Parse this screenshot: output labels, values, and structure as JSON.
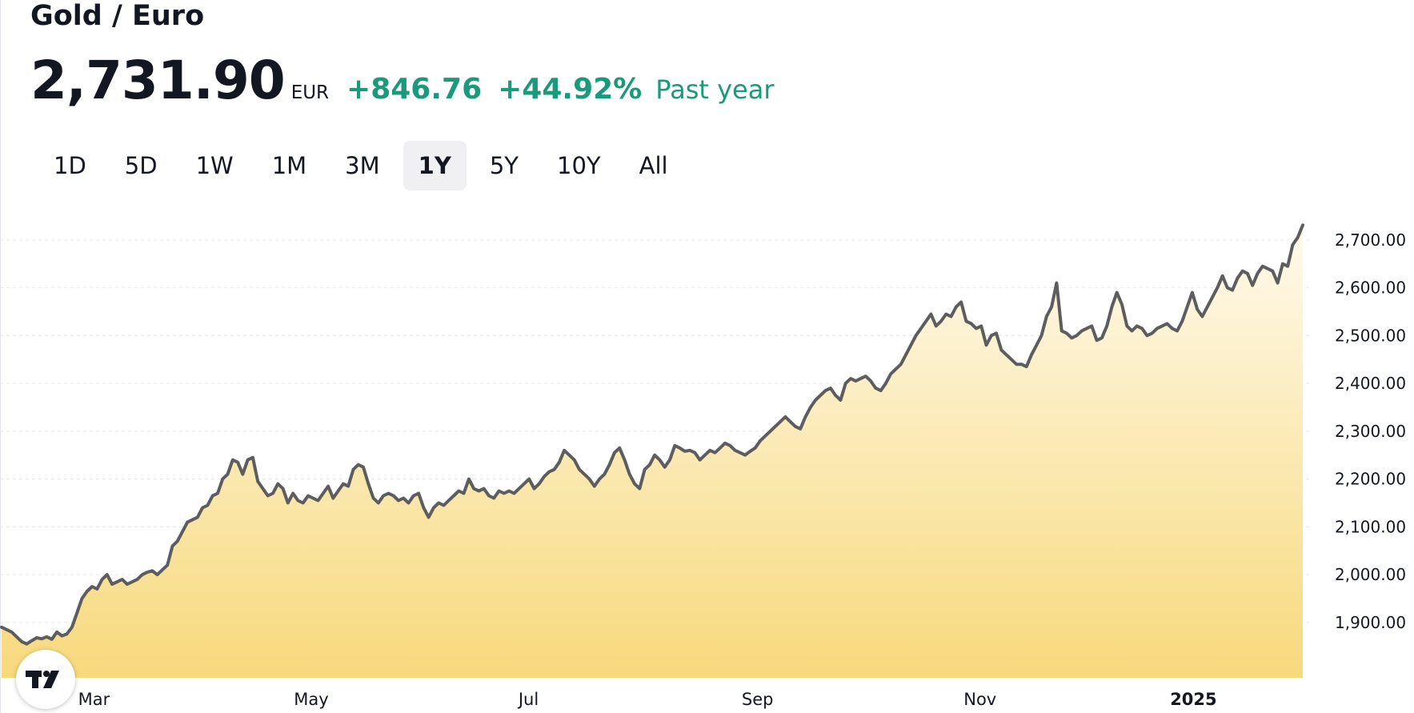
{
  "header": {
    "title": "Gold / Euro",
    "price": "2,731.90",
    "currency": "EUR",
    "change": "+846.76",
    "change_pct": "+44.92%",
    "period_label": "Past year",
    "positive_color": "#1a9a7a"
  },
  "range_tabs": [
    {
      "label": "1D",
      "active": false
    },
    {
      "label": "5D",
      "active": false
    },
    {
      "label": "1W",
      "active": false
    },
    {
      "label": "1M",
      "active": false
    },
    {
      "label": "3M",
      "active": false
    },
    {
      "label": "1Y",
      "active": true
    },
    {
      "label": "5Y",
      "active": false
    },
    {
      "label": "10Y",
      "active": false
    },
    {
      "label": "All",
      "active": false
    }
  ],
  "logo": {
    "icon": "tradingview-logo-icon",
    "text": "TV"
  },
  "chart_data": {
    "type": "area",
    "title": "",
    "xlabel": "",
    "ylabel": "",
    "grid": "horizontal dashed",
    "ylim": [
      1810,
      2760
    ],
    "y_ticks": [
      1900,
      2000,
      2100,
      2200,
      2300,
      2400,
      2500,
      2600,
      2700
    ],
    "y_tick_labels": [
      "1,900.00",
      "2,000.00",
      "2,100.00",
      "2,200.00",
      "2,300.00",
      "2,400.00",
      "2,500.00",
      "2,600.00",
      "2,700.00"
    ],
    "x_ticks": [
      {
        "label": "Mar",
        "t": 0.071,
        "bold": false
      },
      {
        "label": "May",
        "t": 0.238,
        "bold": false
      },
      {
        "label": "Jul",
        "t": 0.405,
        "bold": false
      },
      {
        "label": "Sep",
        "t": 0.581,
        "bold": false
      },
      {
        "label": "Nov",
        "t": 0.752,
        "bold": false
      },
      {
        "label": "2025",
        "t": 0.916,
        "bold": true
      }
    ],
    "line_color": "#5d5d5d",
    "fill_top_color": "#fffaec",
    "fill_bottom_color": "#f7d97c",
    "series": [
      {
        "values": [
          1890,
          1885,
          1880,
          1870,
          1860,
          1855,
          1862,
          1868,
          1866,
          1870,
          1865,
          1880,
          1872,
          1876,
          1890,
          1920,
          1950,
          1965,
          1975,
          1970,
          1990,
          2000,
          1980,
          1985,
          1990,
          1980,
          1985,
          1990,
          2000,
          2005,
          2008,
          2000,
          2010,
          2020,
          2060,
          2070,
          2090,
          2110,
          2115,
          2120,
          2140,
          2145,
          2165,
          2170,
          2200,
          2210,
          2240,
          2235,
          2210,
          2240,
          2245,
          2195,
          2180,
          2165,
          2170,
          2190,
          2180,
          2150,
          2170,
          2155,
          2150,
          2165,
          2160,
          2155,
          2170,
          2185,
          2160,
          2175,
          2190,
          2185,
          2220,
          2230,
          2225,
          2190,
          2160,
          2150,
          2165,
          2170,
          2165,
          2155,
          2160,
          2150,
          2165,
          2170,
          2140,
          2120,
          2140,
          2150,
          2145,
          2155,
          2165,
          2175,
          2170,
          2200,
          2180,
          2175,
          2180,
          2165,
          2160,
          2175,
          2170,
          2175,
          2170,
          2180,
          2190,
          2200,
          2180,
          2190,
          2205,
          2215,
          2220,
          2235,
          2260,
          2250,
          2240,
          2220,
          2210,
          2200,
          2185,
          2200,
          2210,
          2230,
          2255,
          2265,
          2240,
          2210,
          2190,
          2180,
          2220,
          2230,
          2250,
          2240,
          2225,
          2240,
          2270,
          2265,
          2258,
          2260,
          2255,
          2240,
          2250,
          2260,
          2255,
          2265,
          2275,
          2270,
          2260,
          2255,
          2250,
          2258,
          2265,
          2280,
          2290,
          2300,
          2310,
          2320,
          2330,
          2320,
          2310,
          2305,
          2330,
          2350,
          2365,
          2375,
          2385,
          2390,
          2375,
          2365,
          2400,
          2410,
          2405,
          2410,
          2415,
          2405,
          2390,
          2385,
          2400,
          2420,
          2430,
          2440,
          2460,
          2480,
          2500,
          2515,
          2530,
          2545,
          2520,
          2530,
          2545,
          2540,
          2560,
          2570,
          2530,
          2525,
          2515,
          2520,
          2480,
          2500,
          2505,
          2470,
          2460,
          2450,
          2440,
          2440,
          2435,
          2460,
          2480,
          2500,
          2540,
          2560,
          2610,
          2510,
          2505,
          2495,
          2500,
          2510,
          2515,
          2520,
          2490,
          2495,
          2520,
          2560,
          2590,
          2565,
          2520,
          2510,
          2520,
          2515,
          2500,
          2505,
          2515,
          2520,
          2525,
          2515,
          2510,
          2530,
          2560,
          2590,
          2555,
          2540,
          2560,
          2580,
          2600,
          2625,
          2600,
          2595,
          2620,
          2635,
          2630,
          2605,
          2630,
          2645,
          2640,
          2635,
          2610,
          2650,
          2645,
          2690,
          2705,
          2731
        ]
      }
    ]
  }
}
